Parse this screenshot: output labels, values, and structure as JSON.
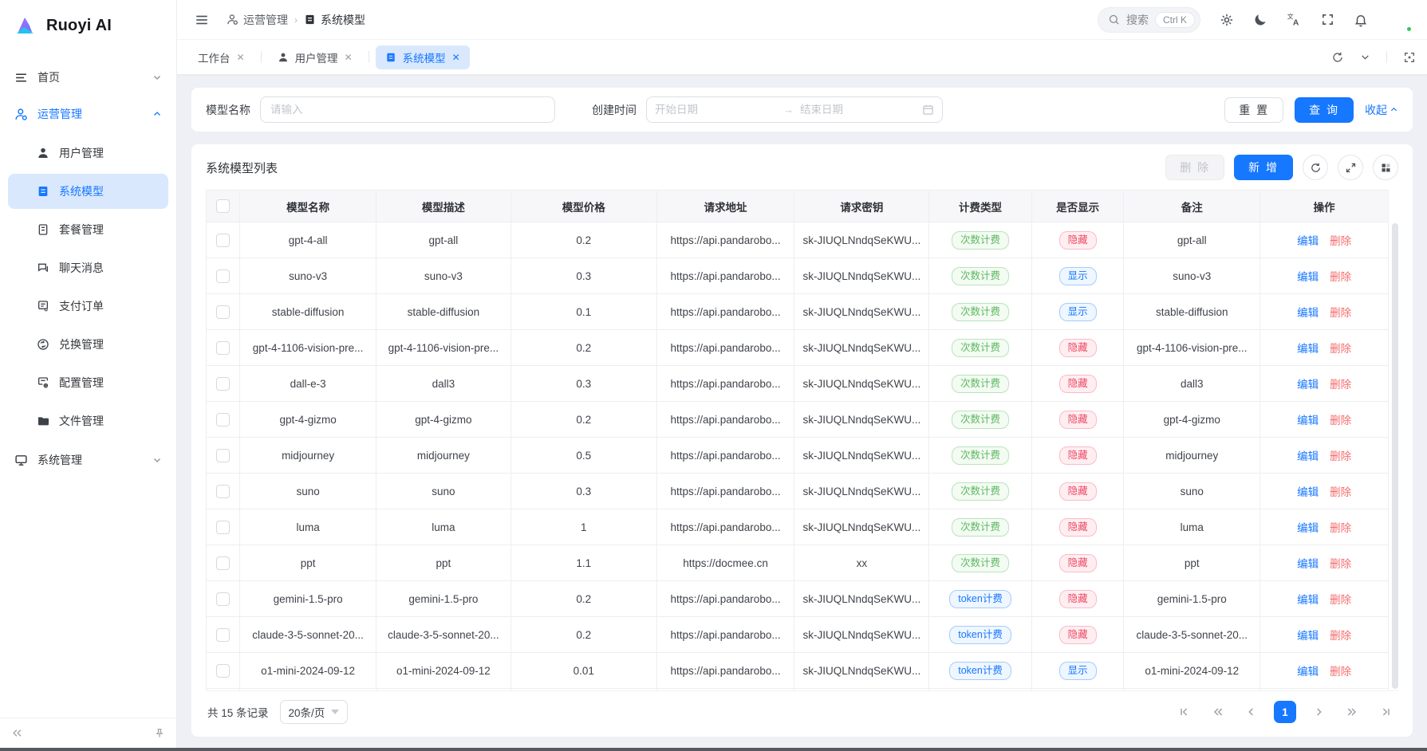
{
  "colors": {
    "primary": "#1677ff",
    "active_menu_bg": "#d9e8fd",
    "badge_green_text": "#5cb85f",
    "badge_blue_text": "#1677ff",
    "badge_red_text": "#ee4a63",
    "delete_link": "#f56c6c",
    "content_bg": "#eef0f5"
  },
  "brand": {
    "name": "Ruoyi AI"
  },
  "sidebar": {
    "home": "首页",
    "operations": "运营管理",
    "system_mgmt": "系统管理",
    "sub_items": [
      "用户管理",
      "系统模型",
      "套餐管理",
      "聊天消息",
      "支付订单",
      "兑换管理",
      "配置管理",
      "文件管理"
    ]
  },
  "header": {
    "breadcrumb": [
      "运营管理",
      "系统模型"
    ],
    "search_placeholder": "搜索",
    "search_shortcut": "Ctrl K"
  },
  "tabs": [
    "工作台",
    "用户管理",
    "系统模型"
  ],
  "filters": {
    "model_name_label": "模型名称",
    "model_name_placeholder": "请输入",
    "create_time_label": "创建时间",
    "date_start_placeholder": "开始日期",
    "date_end_placeholder": "结束日期",
    "range_arrow": "→",
    "reset_label": "重 置",
    "search_label": "查 询",
    "collapse_label": "收起"
  },
  "list": {
    "title": "系统模型列表",
    "delete_label": "删 除",
    "add_label": "新 增",
    "columns": [
      "模型名称",
      "模型描述",
      "模型价格",
      "请求地址",
      "请求密钥",
      "计费类型",
      "是否显示",
      "备注",
      "操作"
    ],
    "edit_label": "编辑",
    "row_delete_label": "删除",
    "billing_types": {
      "count": "次数计费",
      "token": "token计费"
    },
    "visibility": {
      "hidden": "隐藏",
      "shown": "显示"
    },
    "rows": [
      {
        "name": "gpt-4-all",
        "desc": "gpt-all",
        "price": "0.2",
        "url": "https://api.pandarobo...",
        "key": "sk-JIUQLNndqSeKWU...",
        "billing": "count",
        "visible": "hidden",
        "remark": "gpt-all"
      },
      {
        "name": "suno-v3",
        "desc": "suno-v3",
        "price": "0.3",
        "url": "https://api.pandarobo...",
        "key": "sk-JIUQLNndqSeKWU...",
        "billing": "count",
        "visible": "shown",
        "remark": "suno-v3"
      },
      {
        "name": "stable-diffusion",
        "desc": "stable-diffusion",
        "price": "0.1",
        "url": "https://api.pandarobo...",
        "key": "sk-JIUQLNndqSeKWU...",
        "billing": "count",
        "visible": "shown",
        "remark": "stable-diffusion"
      },
      {
        "name": "gpt-4-1106-vision-pre...",
        "desc": "gpt-4-1106-vision-pre...",
        "price": "0.2",
        "url": "https://api.pandarobo...",
        "key": "sk-JIUQLNndqSeKWU...",
        "billing": "count",
        "visible": "hidden",
        "remark": "gpt-4-1106-vision-pre..."
      },
      {
        "name": "dall-e-3",
        "desc": "dall3",
        "price": "0.3",
        "url": "https://api.pandarobo...",
        "key": "sk-JIUQLNndqSeKWU...",
        "billing": "count",
        "visible": "hidden",
        "remark": "dall3"
      },
      {
        "name": "gpt-4-gizmo",
        "desc": "gpt-4-gizmo",
        "price": "0.2",
        "url": "https://api.pandarobo...",
        "key": "sk-JIUQLNndqSeKWU...",
        "billing": "count",
        "visible": "hidden",
        "remark": "gpt-4-gizmo"
      },
      {
        "name": "midjourney",
        "desc": "midjourney",
        "price": "0.5",
        "url": "https://api.pandarobo...",
        "key": "sk-JIUQLNndqSeKWU...",
        "billing": "count",
        "visible": "hidden",
        "remark": "midjourney"
      },
      {
        "name": "suno",
        "desc": "suno",
        "price": "0.3",
        "url": "https://api.pandarobo...",
        "key": "sk-JIUQLNndqSeKWU...",
        "billing": "count",
        "visible": "hidden",
        "remark": "suno"
      },
      {
        "name": "luma",
        "desc": "luma",
        "price": "1",
        "url": "https://api.pandarobo...",
        "key": "sk-JIUQLNndqSeKWU...",
        "billing": "count",
        "visible": "hidden",
        "remark": "luma"
      },
      {
        "name": "ppt",
        "desc": "ppt",
        "price": "1.1",
        "url": "https://docmee.cn",
        "key": "xx",
        "billing": "count",
        "visible": "hidden",
        "remark": "ppt"
      },
      {
        "name": "gemini-1.5-pro",
        "desc": "gemini-1.5-pro",
        "price": "0.2",
        "url": "https://api.pandarobo...",
        "key": "sk-JIUQLNndqSeKWU...",
        "billing": "token",
        "visible": "hidden",
        "remark": "gemini-1.5-pro"
      },
      {
        "name": "claude-3-5-sonnet-20...",
        "desc": "claude-3-5-sonnet-20...",
        "price": "0.2",
        "url": "https://api.pandarobo...",
        "key": "sk-JIUQLNndqSeKWU...",
        "billing": "token",
        "visible": "hidden",
        "remark": "claude-3-5-sonnet-20..."
      },
      {
        "name": "o1-mini-2024-09-12",
        "desc": "o1-mini-2024-09-12",
        "price": "0.01",
        "url": "https://api.pandarobo...",
        "key": "sk-JIUQLNndqSeKWU...",
        "billing": "token",
        "visible": "shown",
        "remark": "o1-mini-2024-09-12"
      },
      {
        "name": "",
        "desc": "",
        "price": "",
        "url": "",
        "key": "",
        "billing": "",
        "visible": "",
        "remark": "",
        "partial": true
      }
    ]
  },
  "pagination": {
    "total_text": "共 15 条记录",
    "page_size": "20条/页",
    "current_page": "1"
  }
}
